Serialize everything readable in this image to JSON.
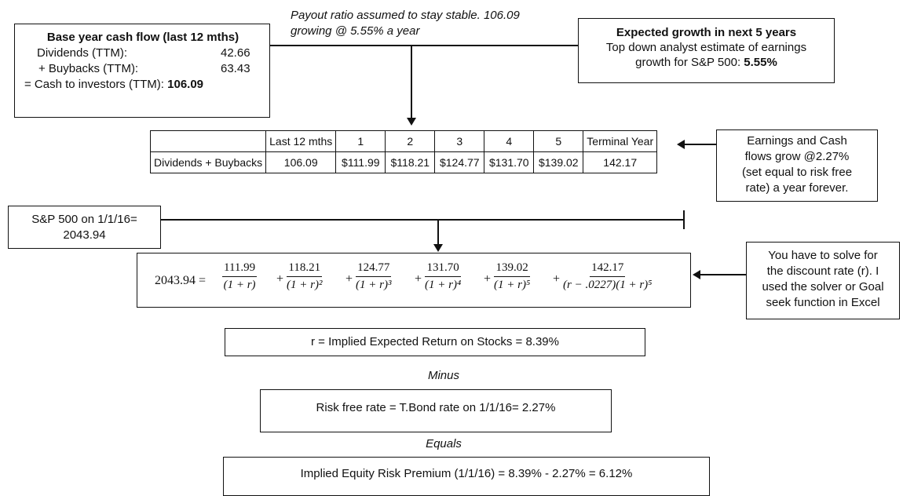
{
  "base_box": {
    "title": "Base year cash flow  (last 12 mths)",
    "dividends_label": "Dividends (TTM):",
    "dividends_value": "42.66",
    "buybacks_label": "+ Buybacks (TTM):",
    "buybacks_value": "63.43",
    "cash_label": "= Cash to investors (TTM):",
    "cash_value": "106.09"
  },
  "payout_note": {
    "line1": "Payout ratio assumed to stay stable. 106.09",
    "line2": "growing @ 5.55% a year"
  },
  "growth_box": {
    "title": "Expected growth in next 5 years",
    "line1": "Top down analyst estimate of earnings",
    "line2_prefix": "growth for S&P 500: ",
    "line2_value": "5.55%"
  },
  "cash_flow_table": {
    "headers": [
      "",
      "Last 12 mths",
      "1",
      "2",
      "3",
      "4",
      "5",
      "Terminal Year"
    ],
    "row_label": "Dividends + Buybacks",
    "row_values": [
      "106.09",
      "$111.99",
      "$118.21",
      "$124.77",
      "$131.70",
      "$139.02",
      "142.17"
    ]
  },
  "terminal_box": {
    "line1": "Earnings and Cash",
    "line2": "flows grow @2.27%",
    "line3": "(set equal to risk free",
    "line4": "rate) a year forever."
  },
  "sp_box": {
    "line1": "S&P 500 on 1/1/16=",
    "line2": "2043.94"
  },
  "equation": {
    "lhs": "2043.94 =",
    "terms": [
      {
        "num": "111.99",
        "den": "(1 + r)"
      },
      {
        "num": "118.21",
        "den": "(1 + r)²"
      },
      {
        "num": "124.77",
        "den": "(1 + r)³"
      },
      {
        "num": "131.70",
        "den": "(1 + r)⁴"
      },
      {
        "num": "139.02",
        "den": "(1 + r)⁵"
      },
      {
        "num": "142.17",
        "den": "(r − .0227)(1 + r)⁵"
      }
    ],
    "plus": "+"
  },
  "solve_box": {
    "line1": "You have to solve for",
    "line2": "the discount rate (r). I",
    "line3": "used the solver or Goal",
    "line4": "seek function in Excel"
  },
  "r_box": {
    "text": "r = Implied Expected Return on Stocks = 8.39%"
  },
  "minus_caption": "Minus",
  "rf_box": {
    "text": "Risk free rate = T.Bond rate on 1/1/16= 2.27%"
  },
  "equals_caption": "Equals",
  "erp_box": {
    "text": "Implied Equity Risk Premium (1/1/16) = 8.39% - 2.27% = 6.12%"
  }
}
